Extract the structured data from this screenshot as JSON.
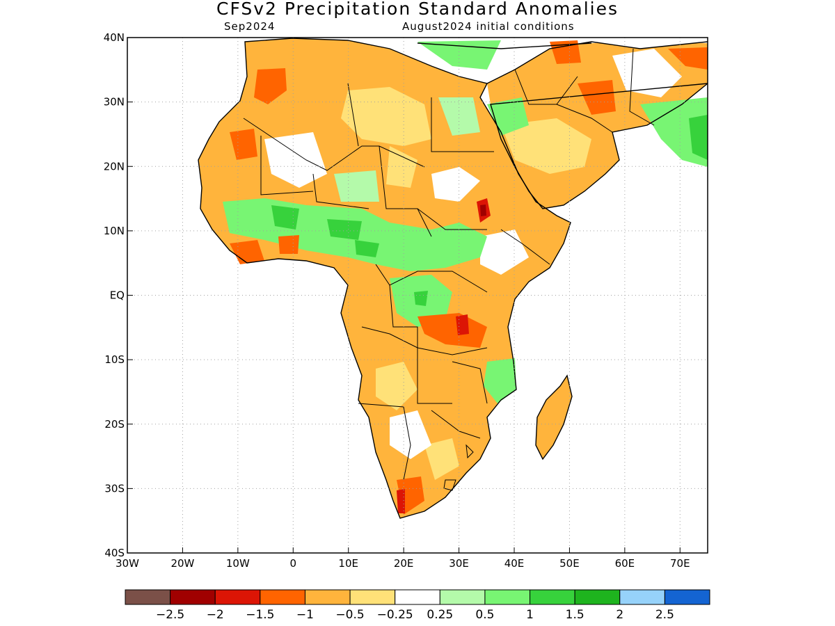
{
  "title": "CFSv2 Precipitation Standard Anomalies",
  "subtitle_left": "Sep2024",
  "subtitle_right": "August2024 initial conditions",
  "map": {
    "lon_range": [
      -30,
      75
    ],
    "lat_range": [
      -40,
      40
    ],
    "lat_ticks": [
      {
        "value": 40,
        "label": "40N"
      },
      {
        "value": 30,
        "label": "30N"
      },
      {
        "value": 20,
        "label": "20N"
      },
      {
        "value": 10,
        "label": "10N"
      },
      {
        "value": 0,
        "label": "EQ"
      },
      {
        "value": -10,
        "label": "10S"
      },
      {
        "value": -20,
        "label": "20S"
      },
      {
        "value": -30,
        "label": "30S"
      },
      {
        "value": -40,
        "label": "40S"
      }
    ],
    "lon_ticks": [
      {
        "value": -30,
        "label": "30W"
      },
      {
        "value": -20,
        "label": "20W"
      },
      {
        "value": -10,
        "label": "10W"
      },
      {
        "value": 0,
        "label": "0"
      },
      {
        "value": 10,
        "label": "10E"
      },
      {
        "value": 20,
        "label": "20E"
      },
      {
        "value": 30,
        "label": "30E"
      },
      {
        "value": 40,
        "label": "40E"
      },
      {
        "value": 50,
        "label": "50E"
      },
      {
        "value": 60,
        "label": "60E"
      },
      {
        "value": 70,
        "label": "70E"
      }
    ]
  },
  "colorbar": {
    "colors": [
      "#7b5048",
      "#a00000",
      "#dc1505",
      "#ff6400",
      "#ffb43c",
      "#ffe178",
      "#ffffff",
      "#b4faaa",
      "#78f573",
      "#37d23c",
      "#1eb41e",
      "#96d2fa",
      "#1464d2"
    ],
    "labels": [
      "−2.5",
      "−2",
      "−1.5",
      "−1",
      "−0.5",
      "−0.25",
      "0.25",
      "0.5",
      "1",
      "1.5",
      "2",
      "2.5"
    ]
  }
}
